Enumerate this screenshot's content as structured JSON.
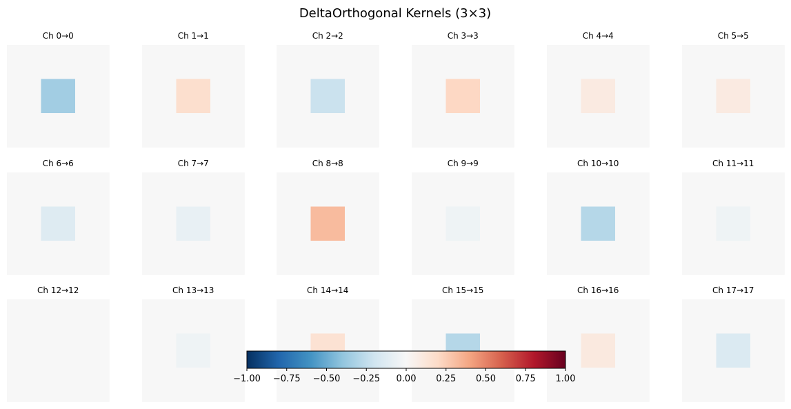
{
  "chart_data": {
    "type": "heatmap",
    "title": "DeltaOrthogonal Kernels (3×3)",
    "colormap": "RdBu_r",
    "kernel_size": [
      3,
      3
    ],
    "vmin": -1.0,
    "vmax": 1.0,
    "background_value": 0.0,
    "colorbar": {
      "ticks": [
        -1.0,
        -0.75,
        -0.5,
        -0.25,
        0.0,
        0.25,
        0.5,
        0.75,
        1.0
      ],
      "tick_labels": [
        "−1.00",
        "−0.75",
        "−0.50",
        "−0.25",
        "0.00",
        "0.25",
        "0.50",
        "0.75",
        "1.00"
      ],
      "orientation": "horizontal",
      "placement": "bottom-center"
    },
    "kernels": [
      {
        "label": "Ch 0→0",
        "center": -0.35
      },
      {
        "label": "Ch 1→1",
        "center": 0.17
      },
      {
        "label": "Ch 2→2",
        "center": -0.22
      },
      {
        "label": "Ch 3→3",
        "center": 0.21
      },
      {
        "label": "Ch 4→4",
        "center": 0.09
      },
      {
        "label": "Ch 5→5",
        "center": 0.09
      },
      {
        "label": "Ch 6→6",
        "center": -0.13
      },
      {
        "label": "Ch 7→7",
        "center": -0.08
      },
      {
        "label": "Ch 8→8",
        "center": 0.32
      },
      {
        "label": "Ch 9→9",
        "center": -0.05
      },
      {
        "label": "Ch 10→10",
        "center": -0.29
      },
      {
        "label": "Ch 11→11",
        "center": -0.05
      },
      {
        "label": "Ch 12→12",
        "center": 0.0
      },
      {
        "label": "Ch 13→13",
        "center": -0.05
      },
      {
        "label": "Ch 14→14",
        "center": 0.15
      },
      {
        "label": "Ch 15→15",
        "center": -0.29
      },
      {
        "label": "Ch 16→16",
        "center": 0.1
      },
      {
        "label": "Ch 17→17",
        "center": -0.15
      }
    ]
  }
}
